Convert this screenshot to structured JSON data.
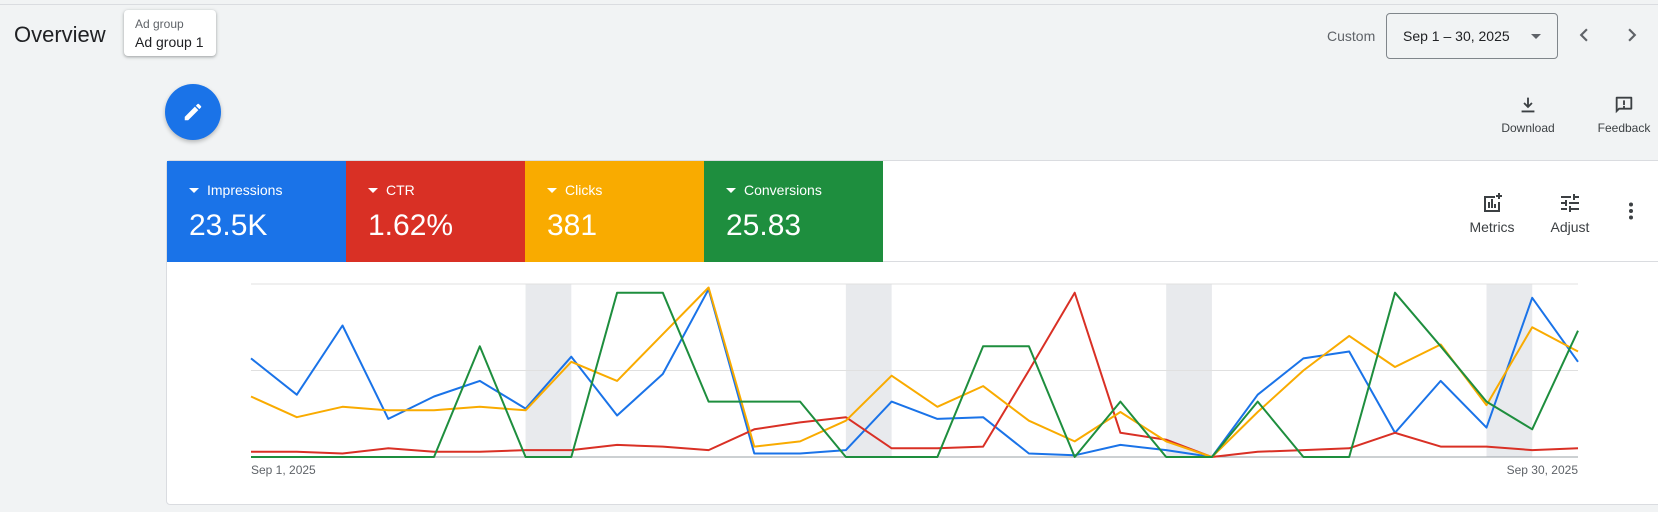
{
  "header": {
    "title": "Overview",
    "ad_group": {
      "label": "Ad group",
      "value": "Ad group 1"
    },
    "custom_label": "Custom",
    "date_range": "Sep 1 – 30, 2025"
  },
  "toolbar": {
    "download_label": "Download",
    "feedback_label": "Feedback"
  },
  "metrics": [
    {
      "name": "Impressions",
      "value": "23.5K",
      "color": "#1a73e8"
    },
    {
      "name": "CTR",
      "value": "1.62%",
      "color": "#d93025"
    },
    {
      "name": "Clicks",
      "value": "381",
      "color": "#f9ab00"
    },
    {
      "name": "Conversions",
      "value": "25.83",
      "color": "#1e8e3e"
    }
  ],
  "card_tools": {
    "metrics_label": "Metrics",
    "adjust_label": "Adjust"
  },
  "chart_data": {
    "type": "line",
    "x": [
      "Sep 1",
      "Sep 2",
      "Sep 3",
      "Sep 4",
      "Sep 5",
      "Sep 6",
      "Sep 7",
      "Sep 8",
      "Sep 9",
      "Sep 10",
      "Sep 11",
      "Sep 12",
      "Sep 13",
      "Sep 14",
      "Sep 15",
      "Sep 16",
      "Sep 17",
      "Sep 18",
      "Sep 19",
      "Sep 20",
      "Sep 21",
      "Sep 22",
      "Sep 23",
      "Sep 24",
      "Sep 25",
      "Sep 26",
      "Sep 27",
      "Sep 28",
      "Sep 29",
      "Sep 30"
    ],
    "x_tick_labels": [
      "Sep 1, 2025",
      "Sep 30, 2025"
    ],
    "weekend_bands": [
      [
        6,
        7
      ],
      [
        13,
        14
      ],
      [
        20,
        21
      ],
      [
        27,
        28
      ]
    ],
    "ylim": [
      0,
      1
    ],
    "grid": true,
    "series": [
      {
        "name": "Impressions",
        "color": "#1a73e8",
        "values": [
          0.57,
          0.36,
          0.76,
          0.22,
          0.35,
          0.44,
          0.28,
          0.58,
          0.24,
          0.48,
          0.97,
          0.02,
          0.02,
          0.04,
          0.32,
          0.22,
          0.23,
          0.02,
          0.01,
          0.07,
          0.04,
          0.0,
          0.36,
          0.57,
          0.61,
          0.14,
          0.44,
          0.17,
          0.92,
          0.55
        ]
      },
      {
        "name": "CTR",
        "color": "#d93025",
        "values": [
          0.03,
          0.03,
          0.02,
          0.05,
          0.03,
          0.03,
          0.04,
          0.04,
          0.07,
          0.06,
          0.04,
          0.16,
          0.2,
          0.23,
          0.05,
          0.05,
          0.06,
          0.5,
          0.95,
          0.14,
          0.1,
          0.0,
          0.03,
          0.04,
          0.05,
          0.14,
          0.06,
          0.06,
          0.04,
          0.05
        ]
      },
      {
        "name": "Clicks",
        "color": "#f9ab00",
        "values": [
          0.35,
          0.23,
          0.29,
          0.27,
          0.27,
          0.29,
          0.27,
          0.55,
          0.44,
          0.71,
          0.98,
          0.06,
          0.09,
          0.21,
          0.47,
          0.29,
          0.41,
          0.21,
          0.09,
          0.26,
          0.09,
          0.0,
          0.26,
          0.5,
          0.7,
          0.52,
          0.65,
          0.3,
          0.75,
          0.61
        ]
      },
      {
        "name": "Conversions",
        "color": "#1e8e3e",
        "values": [
          0.0,
          0.0,
          0.0,
          0.0,
          0.0,
          0.64,
          0.0,
          0.0,
          0.95,
          0.95,
          0.32,
          0.32,
          0.32,
          0.0,
          0.0,
          0.0,
          0.64,
          0.64,
          0.0,
          0.32,
          0.0,
          0.0,
          0.32,
          0.0,
          0.0,
          0.95,
          0.64,
          0.32,
          0.16,
          0.73
        ]
      }
    ]
  }
}
